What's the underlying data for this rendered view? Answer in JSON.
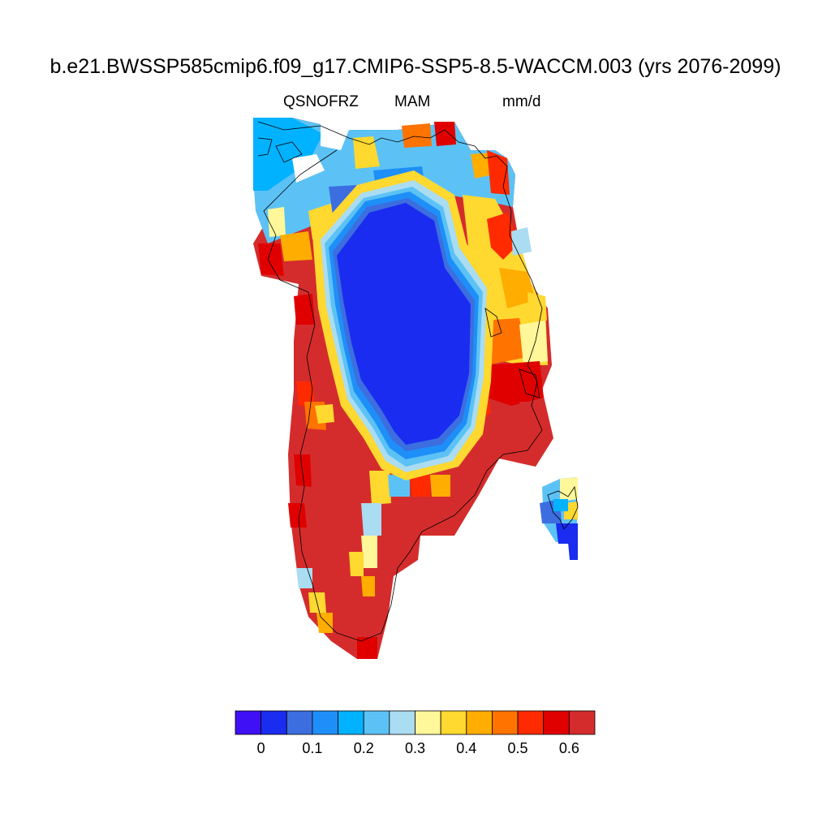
{
  "title": "b.e21.BWSSP585cmip6.f09_g17.CMIP6-SSP5-8.5-WACCM.003 (yrs 2076-2099)",
  "subtitle": {
    "variable": "QSNOFRZ",
    "season": "MAM",
    "units": "mm/d"
  },
  "colorbar": {
    "colors": [
      "#4010f5",
      "#1a2cf0",
      "#3c6ee0",
      "#1e8ff8",
      "#00b2ff",
      "#5cc2f5",
      "#aadcf2",
      "#fff799",
      "#ffd830",
      "#ffad00",
      "#ff7300",
      "#ff2a00",
      "#e00000",
      "#d42c2c"
    ],
    "labels": [
      "0",
      "0.1",
      "0.2",
      "0.3",
      "0.4",
      "0.5",
      "0.6"
    ]
  },
  "legend_classes": {
    "deep_blue": "#1a2cf0",
    "medium_blue": "#3c6ee0",
    "blue": "#1e8ff8",
    "cyan": "#00b2ff",
    "sky": "#5cc2f5",
    "pale_blue": "#aadcf2",
    "pale_yellow": "#fff799",
    "yellow": "#ffd830",
    "orange": "#ffad00",
    "dark_orange": "#ff7300",
    "red": "#ff2a00",
    "dark_red": "#e00000",
    "brick": "#d42c2c"
  }
}
